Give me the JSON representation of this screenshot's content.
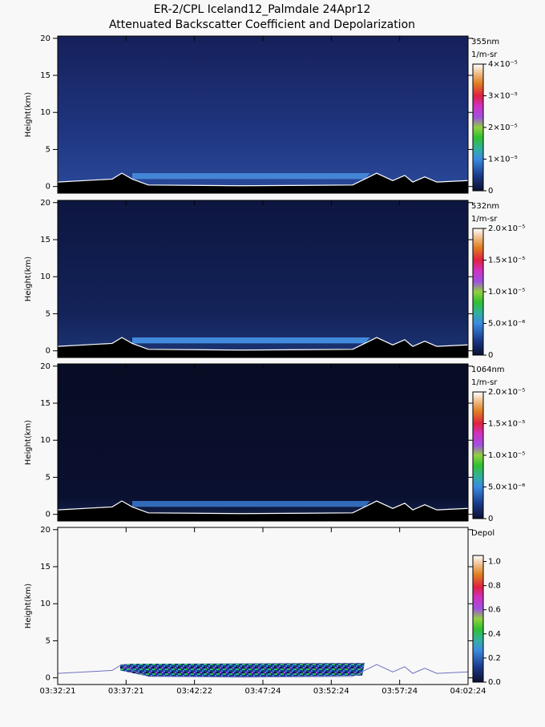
{
  "chart_data": [
    {
      "type": "heatmap",
      "title": "ER-2/CPL Iceland12_Palmdale 24Apr12",
      "subtitle": "Attenuated Backscatter Coefficient and Depolarization",
      "ylabel": "Height(km)",
      "ylim": [
        -0.9,
        20.3
      ],
      "yticks": [
        0,
        5,
        10,
        15,
        20
      ],
      "colorbar_label": [
        "355nm",
        "1/m-sr"
      ],
      "clim": [
        0,
        4e-05
      ],
      "cticks": [
        0,
        {
          "value": 1e-05,
          "label": "1×10⁻⁵"
        },
        {
          "value": 2e-05,
          "label": "2×10⁻⁵"
        },
        {
          "value": 3e-05,
          "label": "3×10⁻⁵"
        },
        {
          "value": 4e-05,
          "label": "4×10⁻⁵"
        }
      ]
    },
    {
      "type": "heatmap",
      "ylabel": "Height(km)",
      "ylim": [
        -0.9,
        20.3
      ],
      "yticks": [
        0,
        5,
        10,
        15,
        20
      ],
      "colorbar_label": [
        "532nm",
        "1/m-sr"
      ],
      "clim": [
        0,
        2e-05
      ],
      "cticks": [
        0,
        {
          "value": 5e-06,
          "label": "5.0×10⁻⁶"
        },
        {
          "value": 1e-05,
          "label": "1.0×10⁻⁵"
        },
        {
          "value": 1.5e-05,
          "label": "1.5×10⁻⁵"
        },
        {
          "value": 2e-05,
          "label": "2.0×10⁻⁵"
        }
      ]
    },
    {
      "type": "heatmap",
      "ylabel": "Height(km)",
      "ylim": [
        -0.9,
        20.3
      ],
      "yticks": [
        0,
        5,
        10,
        15,
        20
      ],
      "colorbar_label": [
        "1064nm",
        "1/m-sr"
      ],
      "clim": [
        0,
        2e-05
      ],
      "cticks": [
        0,
        {
          "value": 5e-06,
          "label": "5.0×10⁻⁶"
        },
        {
          "value": 1e-05,
          "label": "1.0×10⁻⁵"
        },
        {
          "value": 1.5e-05,
          "label": "1.5×10⁻⁵"
        },
        {
          "value": 2e-05,
          "label": "2.0×10⁻⁵"
        }
      ]
    },
    {
      "type": "depol",
      "ylabel": "Height(km)",
      "ylim": [
        -0.9,
        20.3
      ],
      "yticks": [
        0,
        5,
        10,
        15,
        20
      ],
      "colorbar_label": [
        "Depol"
      ],
      "clim": [
        0,
        1.05
      ],
      "cticks": [
        {
          "value": 0,
          "label": "0.0"
        },
        {
          "value": 0.2,
          "label": "0.2"
        },
        {
          "value": 0.4,
          "label": "0.4"
        },
        {
          "value": 0.6,
          "label": "0.6"
        },
        {
          "value": 0.8,
          "label": "0.8"
        },
        {
          "value": 1,
          "label": "1.0"
        }
      ],
      "categories": [
        "03:32:21",
        "03:37:21",
        "03:42:22",
        "03:47:24",
        "03:52:24",
        "03:57:24",
        "04:02:24"
      ]
    }
  ]
}
